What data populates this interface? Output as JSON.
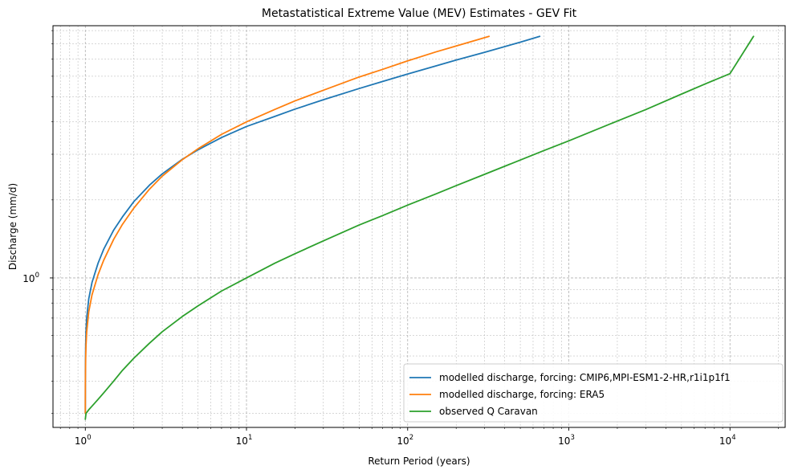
{
  "chart_data": {
    "type": "line",
    "title": "Metastatistical Extreme Value (MEV) Estimates - GEV Fit",
    "xlabel": "Return Period (years)",
    "ylabel": "Discharge (mm/d)",
    "xscale": "log",
    "yscale": "log",
    "xlim": [
      0.63,
      22000
    ],
    "ylim": [
      0.265,
      9.4
    ],
    "grid": "on (major and minor, dashed)",
    "legend_position": "lower-right",
    "x_ticks": [
      {
        "value": 1,
        "base": "10",
        "exp": "0"
      },
      {
        "value": 10,
        "base": "10",
        "exp": "1"
      },
      {
        "value": 100,
        "base": "10",
        "exp": "2"
      },
      {
        "value": 1000,
        "base": "10",
        "exp": "3"
      },
      {
        "value": 10000,
        "base": "10",
        "exp": "4"
      }
    ],
    "y_ticks": [
      {
        "value": 1,
        "base": "10",
        "exp": "0"
      }
    ],
    "series": [
      {
        "name": "modelled discharge, forcing: CMIP6,MPI-ESM1-2-HR,r1i1p1f1",
        "color": "#1f77b4",
        "x": [
          1.0,
          1.001,
          1.005,
          1.01,
          1.02,
          1.05,
          1.1,
          1.2,
          1.3,
          1.5,
          1.7,
          2,
          2.5,
          3,
          4,
          5,
          7,
          10,
          15,
          20,
          30,
          50,
          70,
          100,
          150,
          200,
          300,
          500,
          660
        ],
        "y": [
          0.3,
          0.44,
          0.55,
          0.62,
          0.7,
          0.83,
          0.96,
          1.14,
          1.29,
          1.53,
          1.72,
          1.97,
          2.28,
          2.52,
          2.87,
          3.12,
          3.48,
          3.84,
          4.2,
          4.48,
          4.87,
          5.38,
          5.73,
          6.12,
          6.58,
          6.93,
          7.42,
          8.12,
          8.55
        ]
      },
      {
        "name": "modelled discharge, forcing: ERA5",
        "color": "#ff7f0e",
        "x": [
          1.0,
          1.001,
          1.005,
          1.01,
          1.02,
          1.05,
          1.1,
          1.2,
          1.3,
          1.5,
          1.7,
          2,
          2.5,
          3,
          4,
          5,
          7,
          10,
          15,
          20,
          30,
          50,
          70,
          100,
          150,
          200,
          320
        ],
        "y": [
          0.3,
          0.4,
          0.49,
          0.55,
          0.62,
          0.74,
          0.86,
          1.03,
          1.17,
          1.41,
          1.61,
          1.86,
          2.2,
          2.47,
          2.86,
          3.15,
          3.58,
          4.0,
          4.47,
          4.82,
          5.3,
          5.96,
          6.38,
          6.88,
          7.45,
          7.85,
          8.55
        ]
      },
      {
        "name": "observed Q Caravan",
        "color": "#2ca02c",
        "x": [
          1.0,
          1.01,
          1.05,
          1.1,
          1.2,
          1.3,
          1.5,
          1.7,
          2,
          2.5,
          3,
          4,
          5,
          7,
          10,
          15,
          20,
          30,
          50,
          70,
          100,
          150,
          200,
          300,
          500,
          700,
          1000,
          2000,
          3000,
          5000,
          7000,
          10000,
          14000
        ],
        "y": [
          0.285,
          0.3,
          0.31,
          0.32,
          0.34,
          0.36,
          0.4,
          0.44,
          0.49,
          0.56,
          0.62,
          0.71,
          0.78,
          0.89,
          1.0,
          1.14,
          1.24,
          1.39,
          1.6,
          1.74,
          1.91,
          2.11,
          2.27,
          2.51,
          2.85,
          3.1,
          3.38,
          4.03,
          4.46,
          5.12,
          5.6,
          6.14,
          8.55
        ]
      }
    ]
  }
}
